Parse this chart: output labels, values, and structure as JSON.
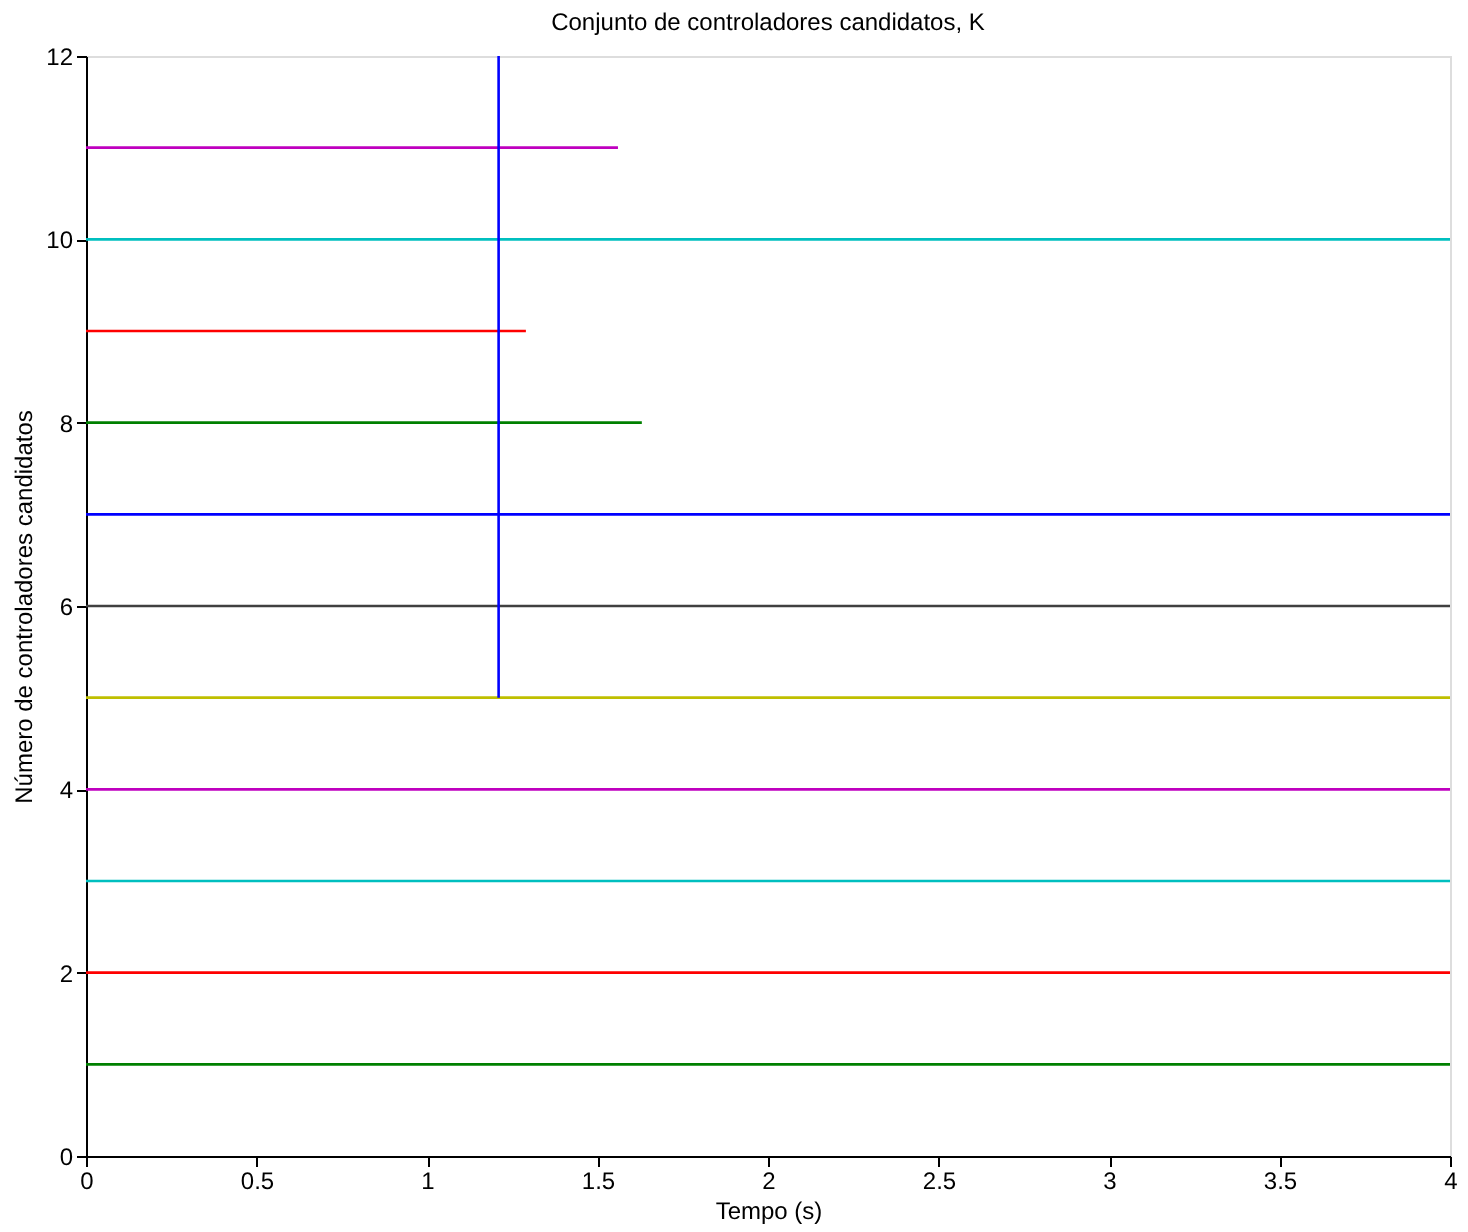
{
  "chart_data": {
    "type": "line",
    "title": "Conjunto de controladores candidatos, K",
    "xlabel": "Tempo (s)",
    "ylabel": "Número de controladores candidatos",
    "xlim": [
      0,
      4
    ],
    "ylim": [
      0,
      12
    ],
    "xticks": [
      0,
      0.5,
      1,
      1.5,
      2,
      2.5,
      3,
      3.5,
      4
    ],
    "yticks": [
      0,
      2,
      4,
      6,
      8,
      10,
      12
    ],
    "grid": false,
    "legend": false,
    "line_style": "solid",
    "marker": "none",
    "series": [
      {
        "color": "#008000",
        "x": [
          0,
          4
        ],
        "values": [
          1,
          1
        ]
      },
      {
        "color": "#ff0000",
        "x": [
          0,
          4
        ],
        "values": [
          2,
          2
        ]
      },
      {
        "color": "#00bfbf",
        "x": [
          0,
          4
        ],
        "values": [
          3,
          3
        ]
      },
      {
        "color": "#bf00bf",
        "x": [
          0,
          4
        ],
        "values": [
          4,
          4
        ]
      },
      {
        "color": "#bfbf00",
        "x": [
          0,
          4
        ],
        "values": [
          5,
          5
        ]
      },
      {
        "color": "#404040",
        "x": [
          0,
          4
        ],
        "values": [
          6,
          6
        ]
      },
      {
        "color": "#0000ff",
        "x": [
          0,
          4
        ],
        "values": [
          7,
          7
        ]
      },
      {
        "color": "#008000",
        "x": [
          0,
          1.63
        ],
        "values": [
          8,
          8
        ]
      },
      {
        "color": "#ff0000",
        "x": [
          0,
          1.29
        ],
        "values": [
          9,
          9
        ]
      },
      {
        "color": "#00bfbf",
        "x": [
          0,
          4
        ],
        "values": [
          10,
          10
        ]
      },
      {
        "color": "#bf00bf",
        "x": [
          0,
          1.56
        ],
        "values": [
          11,
          11
        ]
      },
      {
        "color": "#0000ff",
        "x": [
          1.21,
          1.21
        ],
        "values": [
          5,
          12
        ]
      }
    ]
  }
}
